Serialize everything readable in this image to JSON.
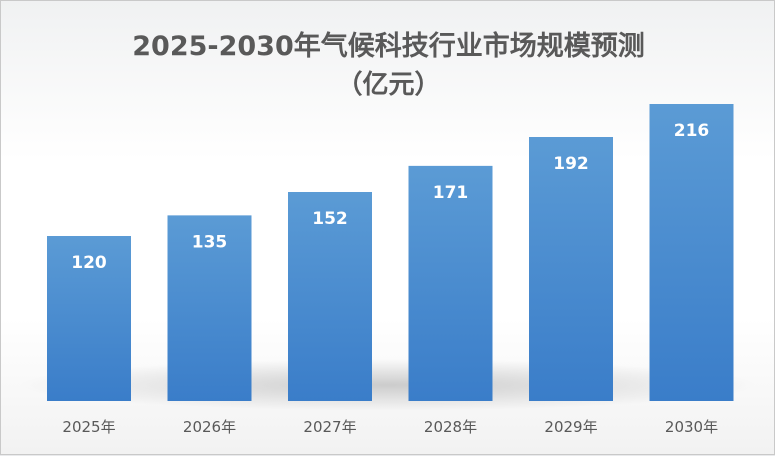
{
  "chart_data": {
    "type": "bar",
    "title": "2025-2030年气候科技行业市场规模预测",
    "subtitle": "（亿元）",
    "categories": [
      "2025年",
      "2026年",
      "2027年",
      "2028年",
      "2029年",
      "2030年"
    ],
    "values": [
      120,
      135,
      152,
      171,
      192,
      216
    ],
    "xlabel": "",
    "ylabel": "",
    "ylim": [
      0,
      240
    ],
    "grid": false,
    "legend": "none",
    "bar_color_top": "#5b9bd5",
    "bar_color_bottom": "#3a7dc9",
    "label_color": "#ffffff"
  }
}
